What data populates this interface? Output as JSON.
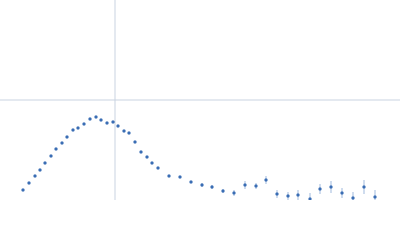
{
  "chart_data": {
    "type": "scatter",
    "color": "#3a6db4",
    "error_color": "#9fb8de",
    "reference_line_color": "#c8d3e0",
    "xlim": [
      -115,
      285
    ],
    "ylim": [
      -100,
      100
    ],
    "reference_lines": {
      "x": 0,
      "y": 0
    },
    "x": [
      -92,
      -86,
      -80,
      -75,
      -70,
      -64,
      -59,
      -53,
      -48,
      -42,
      -37,
      -31,
      -25,
      -19,
      -14,
      -8,
      -2,
      3,
      9,
      14,
      20,
      26,
      32,
      37,
      43,
      54,
      65,
      76,
      87,
      97,
      108,
      119,
      130,
      141,
      151,
      162,
      173,
      183,
      195,
      205,
      216,
      227,
      238,
      249,
      260
    ],
    "values": [
      -90,
      -83,
      -76,
      -70,
      -63,
      -56,
      -49,
      -43,
      -37,
      -30,
      -28,
      -24,
      -19,
      -17,
      -20,
      -23,
      -22,
      -26,
      -31,
      -33,
      -42,
      -52,
      -57,
      -63,
      -68,
      -76,
      -77,
      -82,
      -85,
      -87,
      -91,
      -93,
      -85,
      -86,
      -80,
      -94,
      -96,
      -95,
      -99,
      -89,
      -87,
      -93,
      -98,
      -87,
      -97
    ],
    "errors": [
      1,
      1,
      1,
      1,
      1,
      1,
      1,
      1,
      1,
      1,
      1,
      1,
      1,
      1,
      1,
      1,
      1,
      1,
      1,
      1,
      1,
      1,
      1,
      1,
      1,
      1,
      1,
      1,
      2,
      2,
      2,
      3,
      4,
      3,
      4,
      4,
      4,
      5,
      6,
      5,
      6,
      5,
      6,
      7,
      7
    ]
  }
}
